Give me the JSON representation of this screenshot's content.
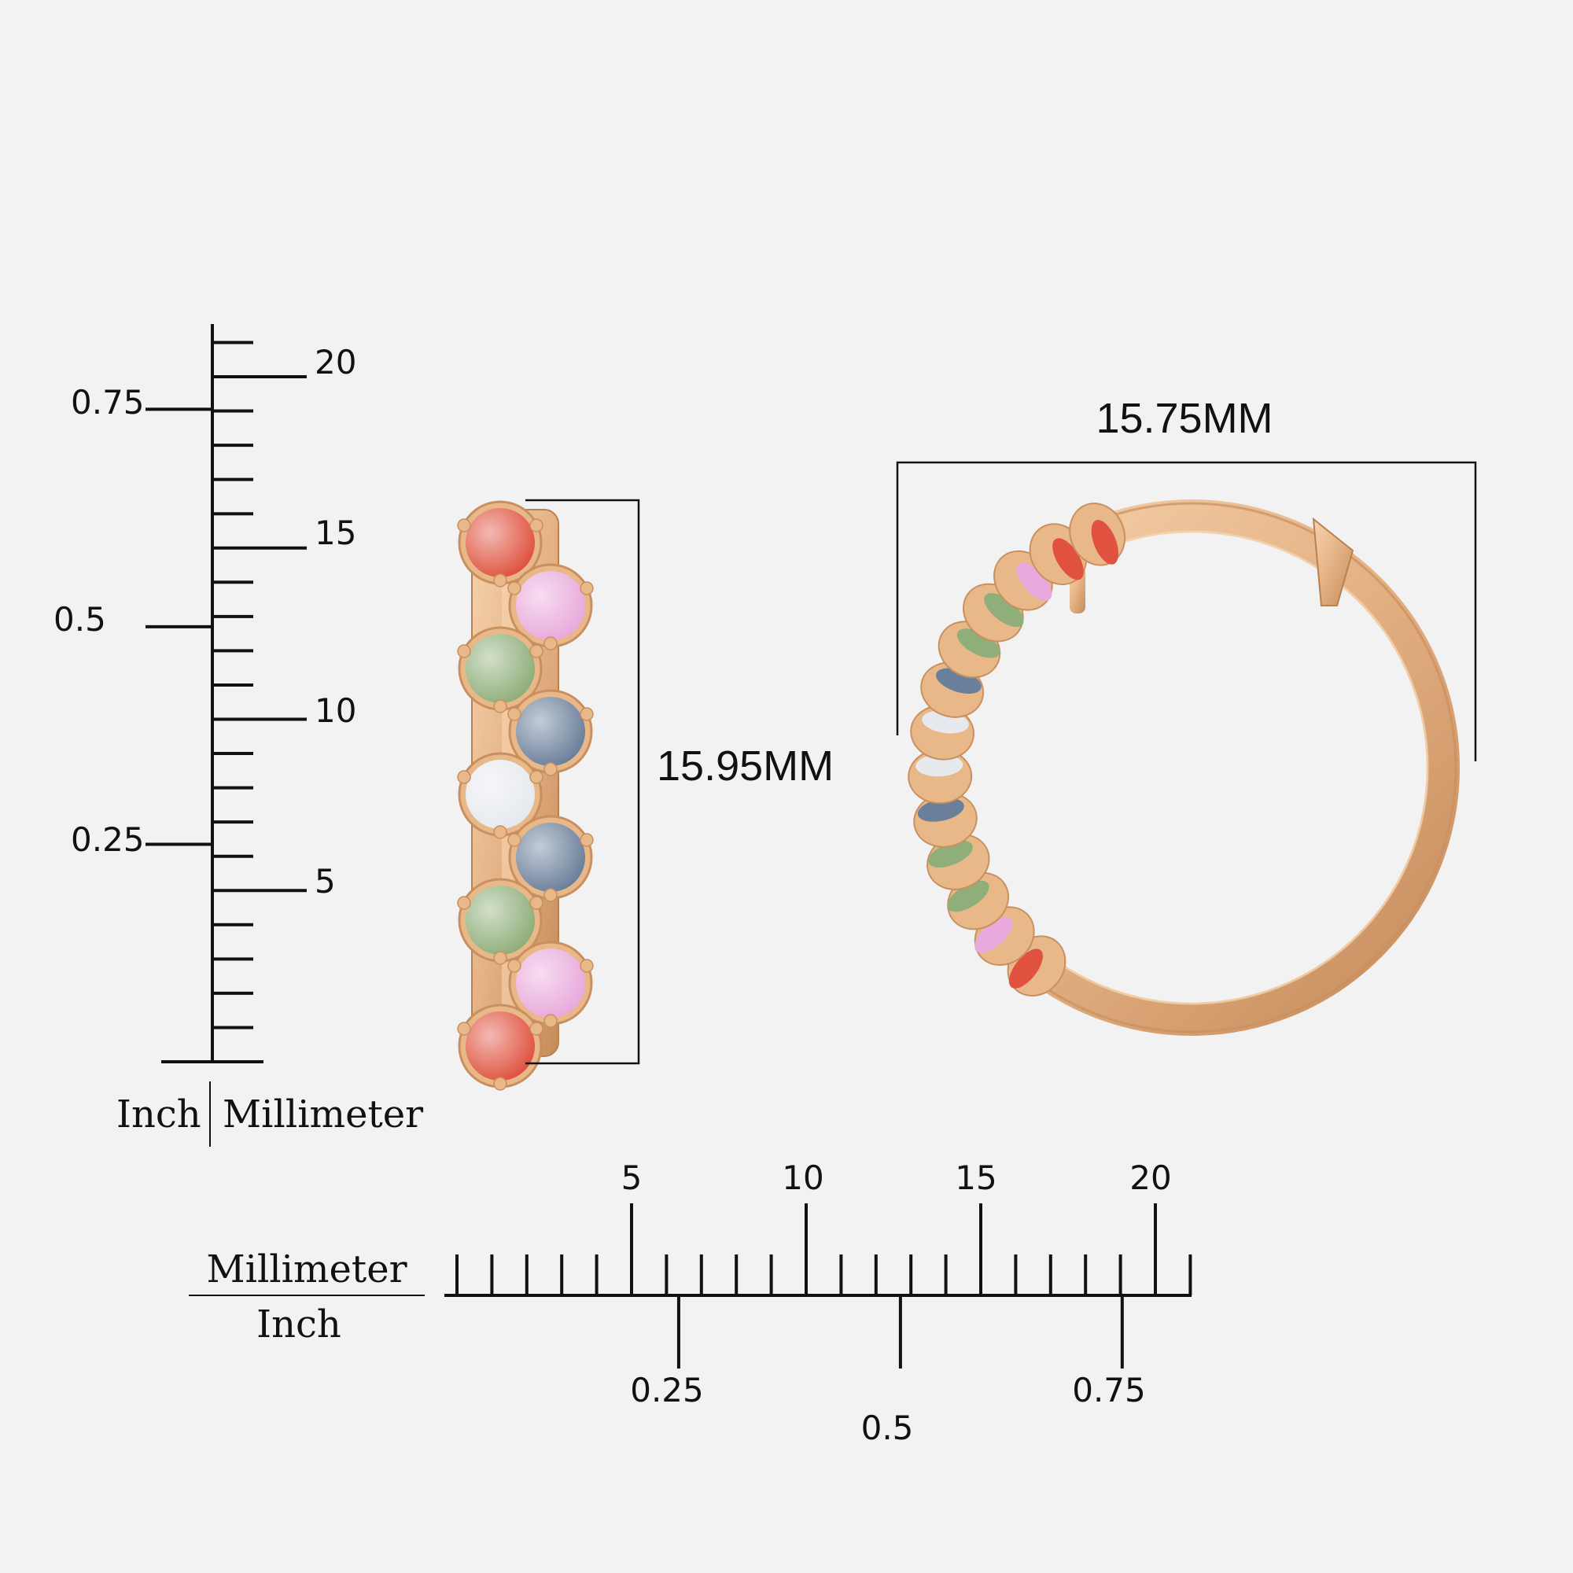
{
  "vertical_scale": {
    "mm_labels": [
      "20",
      "15",
      "10",
      "5"
    ],
    "inch_labels": [
      "0.75",
      "0.5",
      "0.25"
    ],
    "unit_left": "Inch",
    "unit_right": "Millimeter"
  },
  "horizontal_scale": {
    "mm_labels": [
      "5",
      "10",
      "15",
      "20"
    ],
    "inch_labels": [
      "0.25",
      "0.5",
      "0.75"
    ],
    "unit_top": "Millimeter",
    "unit_bottom": "Inch"
  },
  "dimensions": {
    "side_height": "15.95MM",
    "front_width": "15.75MM"
  },
  "colors": {
    "gold": "#e8b889",
    "gold_dark": "#c98f5f",
    "ruby": "#e0523f",
    "pink": "#e9a9dc",
    "green": "#8fae7a",
    "blue": "#6a7f9a",
    "white": "#e6e9ee"
  },
  "stones_side": [
    "ruby",
    "pink",
    "green",
    "blue",
    "white",
    "blue",
    "green",
    "pink",
    "ruby"
  ]
}
